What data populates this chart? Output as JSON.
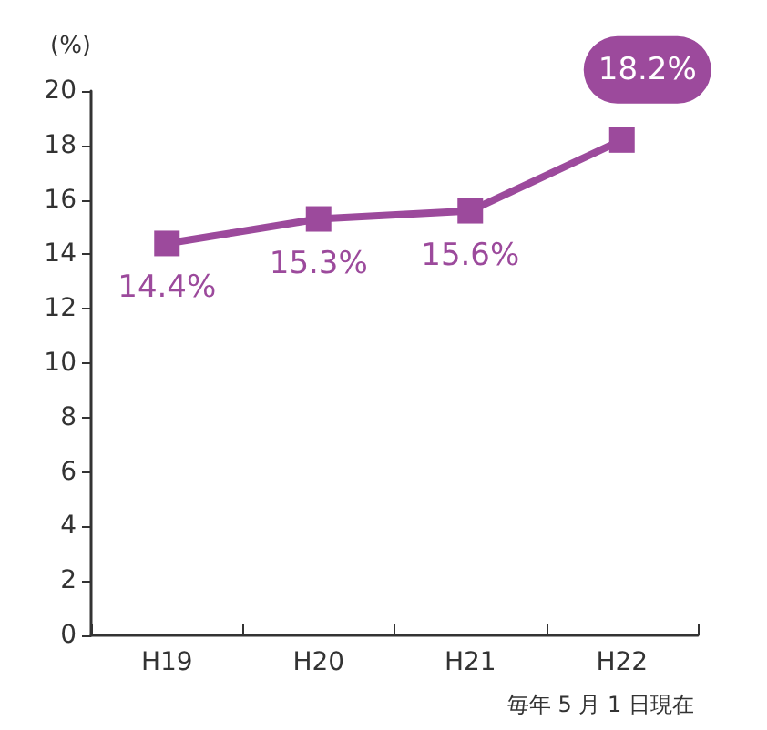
{
  "chart_data": {
    "type": "line",
    "ylabel": "(%)",
    "annotations": [
      "毎年 5 月 1 日現在"
    ],
    "categories": [
      "H19",
      "H20",
      "H21",
      "H22"
    ],
    "series": [
      {
        "color": "#9c4a9c",
        "values": [
          14.4,
          15.3,
          15.6,
          18.2
        ],
        "value_labels": [
          "14.4%",
          "15.3%",
          "15.6%",
          "18.2%"
        ]
      }
    ],
    "ylim": [
      0,
      20
    ],
    "yticks": [
      0,
      2,
      4,
      6,
      8,
      10,
      12,
      14,
      16,
      18,
      20
    ],
    "grid": false,
    "marker": "square",
    "line_style": "solid"
  }
}
